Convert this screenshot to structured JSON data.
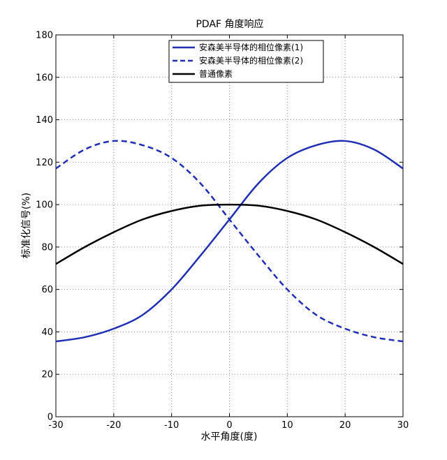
{
  "chart_data": {
    "type": "line",
    "title": "PDAF 角度响应",
    "xlabel": "水平角度(度)",
    "ylabel": "标准化信号(%)",
    "xlim": [
      -30,
      30
    ],
    "ylim": [
      0,
      180
    ],
    "xticks": [
      -30,
      -20,
      -10,
      0,
      10,
      20,
      30
    ],
    "yticks": [
      0,
      20,
      40,
      60,
      80,
      100,
      120,
      140,
      160,
      180
    ],
    "grid": true,
    "legend_position": "top-right",
    "x": [
      -30,
      -25,
      -20,
      -15,
      -10,
      -5,
      0,
      5,
      10,
      15,
      20,
      25,
      30
    ],
    "series": [
      {
        "name": "安森美半导体的相位像素(1)",
        "color": "#1f2fb4",
        "style": "solid",
        "values": [
          35.5,
          37.5,
          41.5,
          48,
          60,
          76,
          93,
          110,
          122,
          128,
          130,
          126,
          117
        ]
      },
      {
        "name": "安森美半导体的相位像素(2)",
        "color": "#1f2fb4",
        "style": "dashed",
        "values": [
          117,
          126,
          130,
          128,
          122,
          110,
          93,
          76,
          60,
          48,
          41.5,
          37.5,
          35.5
        ]
      },
      {
        "name": "普通像素",
        "color": "#000000",
        "style": "solid",
        "values": [
          72,
          80,
          87,
          93,
          97,
          99.5,
          100,
          99.5,
          97,
          93,
          87,
          80,
          72
        ]
      }
    ]
  }
}
